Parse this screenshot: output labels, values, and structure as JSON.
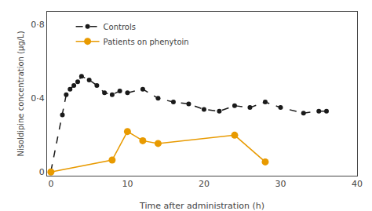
{
  "chart_data": {
    "type": "line",
    "xlabel": "Time after administration (h)",
    "ylabel": "Nisoldipine concentration (μg/L)",
    "series": [
      {
        "name": "Controls",
        "color": "#1a1a1a",
        "line_style": "dashed",
        "marker": "circle",
        "x": [
          0,
          1.5,
          2,
          2.5,
          3,
          3.5,
          4,
          5,
          6,
          7,
          8,
          9,
          10,
          12,
          14,
          16,
          18,
          20,
          22,
          24,
          26,
          28,
          30,
          33,
          35,
          36
        ],
        "values": [
          0.005,
          0.31,
          0.42,
          0.45,
          0.47,
          0.49,
          0.52,
          0.5,
          0.47,
          0.43,
          0.42,
          0.44,
          0.43,
          0.45,
          0.4,
          0.38,
          0.37,
          0.34,
          0.33,
          0.36,
          0.35,
          0.38,
          0.35,
          0.32,
          0.33,
          0.33
        ]
      },
      {
        "name": "Patients on phenytoin",
        "color": "#e89a00",
        "line_style": "solid",
        "marker": "circle",
        "x": [
          0,
          8,
          10,
          12,
          14,
          24,
          28
        ],
        "values": [
          0,
          0.065,
          0.22,
          0.17,
          0.155,
          0.2,
          0.055
        ]
      }
    ],
    "xlim": [
      -0.5,
      40
    ],
    "xticks": [
      0,
      10,
      20,
      30,
      40
    ],
    "ylim": [
      -0.02,
      0.87
    ],
    "yticks": [
      0,
      {
        "value": 0.4,
        "label": "0·4"
      },
      {
        "value": 0.8,
        "label": "0·8"
      }
    ],
    "grid": false,
    "legend": "upper left"
  }
}
